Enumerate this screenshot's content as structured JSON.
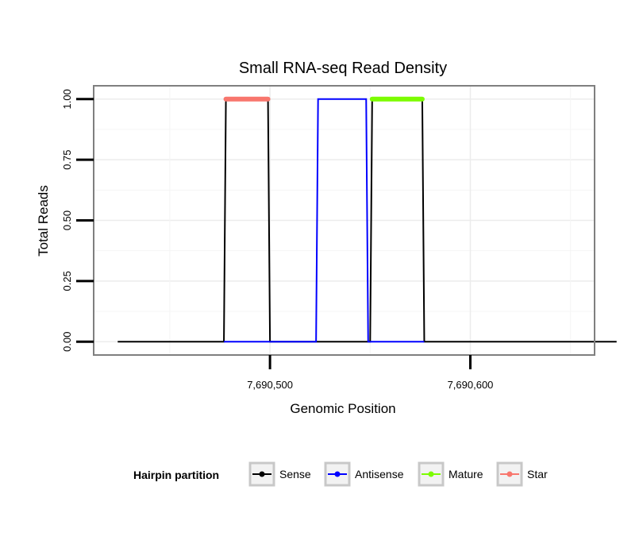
{
  "chart_data": {
    "type": "line",
    "title": "Small RNA-seq Read Density",
    "xlabel": "Genomic Position",
    "ylabel": "Total Reads",
    "xlim": [
      7690412,
      7690662
    ],
    "ylim": [
      -0.055,
      1.055
    ],
    "x_ticks": [
      {
        "value": 7690500,
        "label": "7,690,500"
      },
      {
        "value": 7690600,
        "label": "7,690,600"
      }
    ],
    "y_ticks": [
      {
        "value": 0.0,
        "label": "0.00"
      },
      {
        "value": 0.25,
        "label": "0.25"
      },
      {
        "value": 0.5,
        "label": "0.50"
      },
      {
        "value": 0.75,
        "label": "0.75"
      },
      {
        "value": 1.0,
        "label": "1.00"
      }
    ],
    "grid": true,
    "legend_position": "bottom",
    "legend_title": "Hairpin partition",
    "series": [
      {
        "name": "Sense",
        "color": "#000000",
        "points": [
          [
            7690424,
            0
          ],
          [
            7690477,
            0
          ],
          [
            7690478,
            1
          ],
          [
            7690499,
            1
          ],
          [
            7690500,
            0
          ],
          [
            7690550,
            0
          ],
          [
            7690551,
            1
          ],
          [
            7690576,
            1
          ],
          [
            7690577,
            0
          ],
          [
            7690673,
            0
          ]
        ]
      },
      {
        "name": "Antisense",
        "color": "#0000ff",
        "points": [
          [
            7690477,
            0
          ],
          [
            7690523,
            0
          ],
          [
            7690524,
            1
          ],
          [
            7690548,
            1
          ],
          [
            7690549,
            0
          ],
          [
            7690577,
            0
          ]
        ]
      },
      {
        "name": "Mature",
        "color": "#7cfc00",
        "points": [
          [
            7690551,
            1
          ],
          [
            7690576,
            1
          ]
        ]
      },
      {
        "name": "Star",
        "color": "#f8766d",
        "points": [
          [
            7690478,
            1
          ],
          [
            7690499,
            1
          ]
        ]
      }
    ]
  }
}
